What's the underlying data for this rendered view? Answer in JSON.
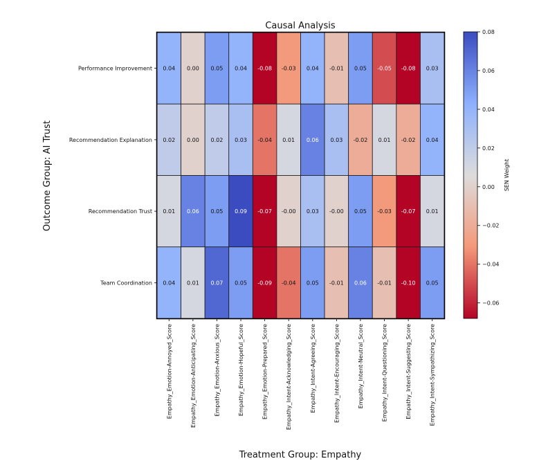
{
  "chart_data": {
    "type": "heatmap",
    "title": "Causal Analysis",
    "xlabel": "Treatment Group: Empathy",
    "ylabel": "Outcome Group: AI Trust",
    "colorbar_label": "SEN Weight",
    "colorbar_ticks": [
      "0.08",
      "0.06",
      "0.04",
      "0.02",
      "0.00",
      "−0.02",
      "−0.04",
      "−0.06"
    ],
    "colorbar_range": [
      -0.068,
      0.08
    ],
    "columns": [
      "Empathy_Emotion-Annoyed_Score",
      "Empathy_Emotion-Anticipating_Score",
      "Empathy_Emotion-Anxious_Score",
      "Empathy_Emotion-Hopeful_Score",
      "Empathy_Emotion-Prepared_Score",
      "Empathy_Intent-Acknowledging_Score",
      "Empathy_Intent-Agreeing_Score",
      "Empathy_Intent-Encouraging_Score",
      "Empathy_Intent-Neutral_Score",
      "Empathy_Intent-Questioning_Score",
      "Empathy_Intent-Suggesting_Score",
      "Empathy_Intent-Sympathizing_Score"
    ],
    "rows": [
      "Performance Improvement",
      "Recommendation Explanation",
      "Recommendation Trust",
      "Team Coordination"
    ],
    "values": [
      [
        0.04,
        0.0,
        0.05,
        0.04,
        -0.08,
        -0.03,
        0.04,
        -0.01,
        0.05,
        -0.05,
        -0.08,
        0.03
      ],
      [
        0.02,
        0.0,
        0.02,
        0.03,
        -0.04,
        0.01,
        0.06,
        0.03,
        -0.02,
        0.01,
        -0.02,
        0.04
      ],
      [
        0.01,
        0.06,
        0.05,
        0.09,
        -0.07,
        -0.0,
        0.03,
        -0.0,
        0.05,
        -0.03,
        -0.07,
        0.01
      ],
      [
        0.04,
        0.01,
        0.07,
        0.05,
        -0.09,
        -0.04,
        0.05,
        -0.01,
        0.06,
        -0.01,
        -0.1,
        0.05
      ]
    ],
    "labels": [
      [
        "0.04",
        "0.00",
        "0.05",
        "0.04",
        "-0.08",
        "-0.03",
        "0.04",
        "-0.01",
        "0.05",
        "-0.05",
        "-0.08",
        "0.03"
      ],
      [
        "0.02",
        "0.00",
        "0.02",
        "0.03",
        "-0.04",
        "0.01",
        "0.06",
        "0.03",
        "-0.02",
        "0.01",
        "-0.02",
        "0.04"
      ],
      [
        "0.01",
        "0.06",
        "0.05",
        "0.09",
        "-0.07",
        "-0.00",
        "0.03",
        "-0.00",
        "0.05",
        "-0.03",
        "-0.07",
        "0.01"
      ],
      [
        "0.04",
        "0.01",
        "0.07",
        "0.05",
        "-0.09",
        "-0.04",
        "0.05",
        "-0.01",
        "0.06",
        "-0.01",
        "-0.10",
        "0.05"
      ]
    ]
  }
}
